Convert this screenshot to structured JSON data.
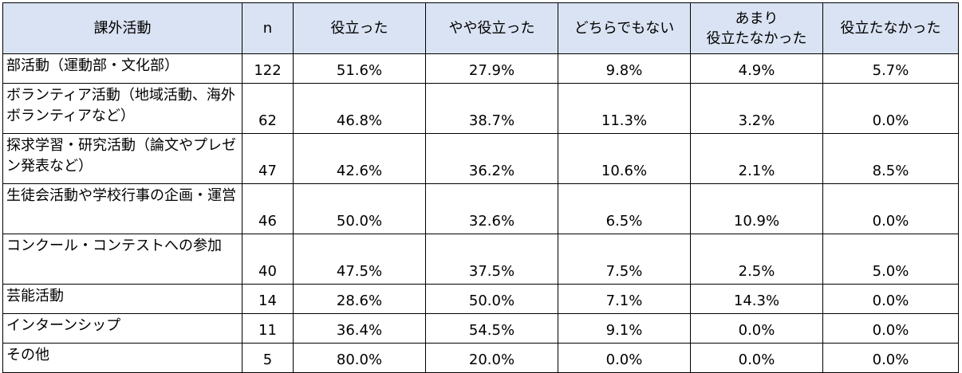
{
  "header": {
    "activity": "課外活動",
    "n": "n",
    "useful": "役立った",
    "somewhat_useful": "やや役立った",
    "neither": "どちらでもない",
    "not_very_useful_line1": "あまり",
    "not_very_useful_line2": "役立たなかった",
    "not_useful": "役立たなかった"
  },
  "rows": [
    {
      "activity": "部活動（運動部・文化部）",
      "n": "122",
      "useful": "51.6%",
      "somewhat_useful": "27.9%",
      "neither": "9.8%",
      "not_very_useful": "4.9%",
      "not_useful": "5.7%"
    },
    {
      "activity": "ボランティア活動（地域活動、海外ボランティアなど）",
      "n": "62",
      "useful": "46.8%",
      "somewhat_useful": "38.7%",
      "neither": "11.3%",
      "not_very_useful": "3.2%",
      "not_useful": "0.0%"
    },
    {
      "activity": "探求学習・研究活動（論文やプレゼン発表など）",
      "n": "47",
      "useful": "42.6%",
      "somewhat_useful": "36.2%",
      "neither": "10.6%",
      "not_very_useful": "2.1%",
      "not_useful": "8.5%"
    },
    {
      "activity": "生徒会活動や学校行事の企画・運営",
      "n": "46",
      "useful": "50.0%",
      "somewhat_useful": "32.6%",
      "neither": "6.5%",
      "not_very_useful": "10.9%",
      "not_useful": "0.0%"
    },
    {
      "activity": "コンクール・コンテストへの参加",
      "n": "40",
      "useful": "47.5%",
      "somewhat_useful": "37.5%",
      "neither": "7.5%",
      "not_very_useful": "2.5%",
      "not_useful": "5.0%"
    },
    {
      "activity": "芸能活動",
      "n": "14",
      "useful": "28.6%",
      "somewhat_useful": "50.0%",
      "neither": "7.1%",
      "not_very_useful": "14.3%",
      "not_useful": "0.0%"
    },
    {
      "activity": "インターンシップ",
      "n": "11",
      "useful": "36.4%",
      "somewhat_useful": "54.5%",
      "neither": "9.1%",
      "not_very_useful": "0.0%",
      "not_useful": "0.0%"
    },
    {
      "activity": "その他",
      "n": "5",
      "useful": "80.0%",
      "somewhat_useful": "20.0%",
      "neither": "0.0%",
      "not_very_useful": "0.0%",
      "not_useful": "0.0%"
    }
  ]
}
